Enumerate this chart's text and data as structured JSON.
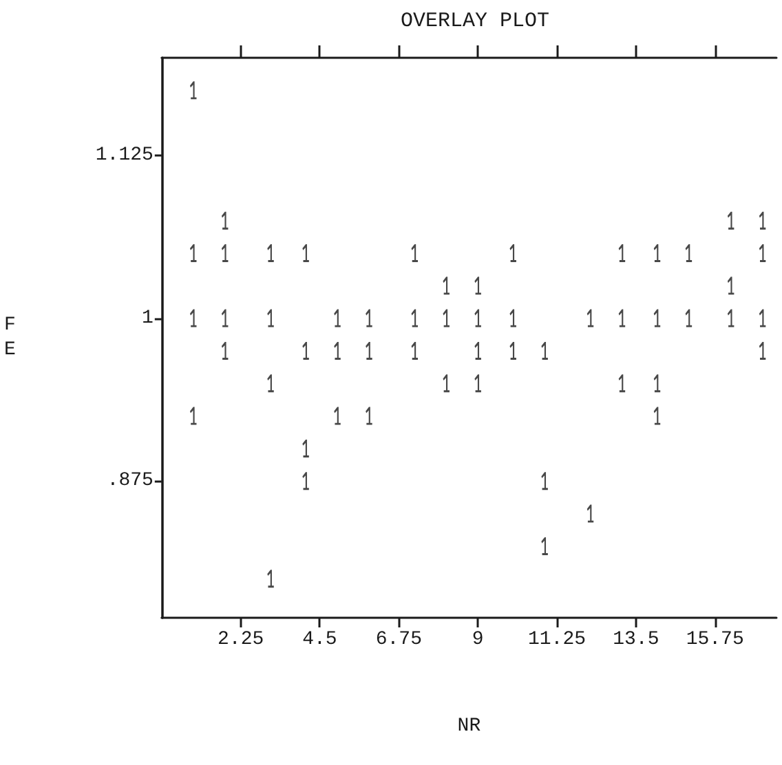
{
  "chart_data": {
    "type": "scatter",
    "title": "OVERLAY PLOT",
    "xlabel": "NR",
    "ylabel": "FE",
    "xlim": [
      0,
      17.5
    ],
    "xticks": [
      2.25,
      4.5,
      6.75,
      9,
      11.25,
      13.5,
      15.75
    ],
    "ylim": [
      0.77,
      1.2
    ],
    "yticks": [
      {
        "value": 0.875,
        "label": ".875"
      },
      1,
      1.125
    ],
    "grid": false,
    "legend": false,
    "series": [
      {
        "name": "1",
        "color": "#1a1a1a",
        "x": [
          0.9,
          1.8,
          16.2,
          17.1,
          0.9,
          1.8,
          3.1,
          4.1,
          7.2,
          10,
          13.1,
          14.1,
          15,
          17.1,
          8.1,
          9,
          16.2,
          0.9,
          1.8,
          3.1,
          5,
          5.9,
          7.2,
          8.1,
          9,
          10,
          12.2,
          13.1,
          14.1,
          15,
          16.2,
          17.1,
          1.8,
          4.1,
          5,
          5.9,
          7.2,
          9,
          10,
          10.9,
          17.1,
          3.1,
          8.1,
          9,
          13.1,
          14.1,
          0.9,
          5,
          5.9,
          14.1,
          4.1,
          4.1,
          10.9,
          12.2,
          10.9,
          3.1
        ],
        "values": [
          1.175,
          1.075,
          1.075,
          1.075,
          1.05,
          1.05,
          1.05,
          1.05,
          1.05,
          1.05,
          1.05,
          1.05,
          1.05,
          1.05,
          1.025,
          1.025,
          1.025,
          1,
          1,
          1,
          1,
          1,
          1,
          1,
          1,
          1,
          1,
          1,
          1,
          1,
          1,
          1,
          0.975,
          0.975,
          0.975,
          0.975,
          0.975,
          0.975,
          0.975,
          0.975,
          0.975,
          0.95,
          0.95,
          0.95,
          0.95,
          0.95,
          0.925,
          0.925,
          0.925,
          0.925,
          0.9,
          0.875,
          0.875,
          0.85,
          0.825,
          0.8
        ]
      }
    ]
  }
}
